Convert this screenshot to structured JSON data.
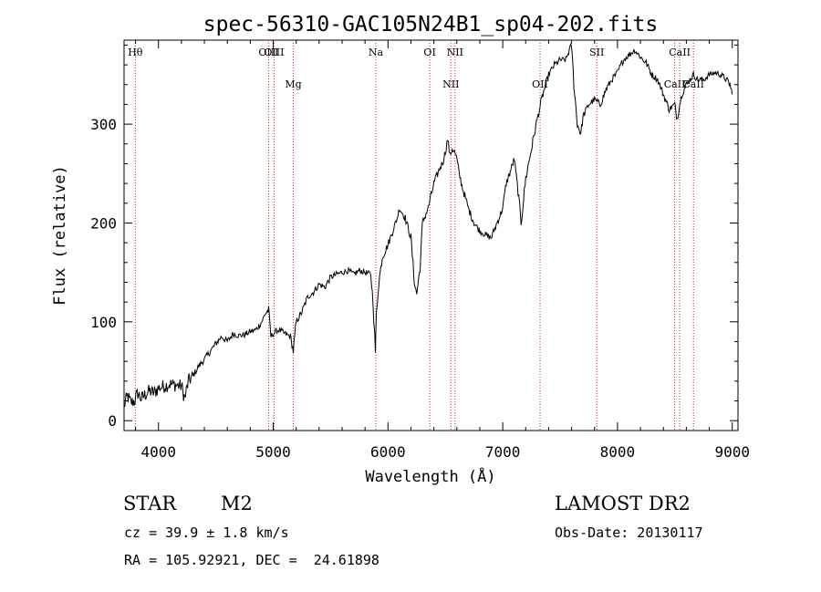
{
  "chart_data": {
    "type": "line",
    "title": "spec-56310-GAC105N24B1_sp04-202.fits",
    "xlabel": "Wavelength (Å)",
    "ylabel": "Flux (relative)",
    "xlim": [
      3700,
      9050
    ],
    "ylim": [
      -10,
      385
    ],
    "xticks": [
      4000,
      5000,
      6000,
      7000,
      8000,
      9000
    ],
    "xtick_labels": [
      "4000",
      "5000",
      "6000",
      "7000",
      "8000",
      "9000"
    ],
    "yticks": [
      0,
      100,
      200,
      300
    ],
    "ytick_labels": [
      "0",
      "100",
      "200",
      "300"
    ],
    "grid": false,
    "lines": [
      {
        "label": "Hθ",
        "wavelength": 3798,
        "label_row": "upper"
      },
      {
        "label": "OIII",
        "wavelength": 4959,
        "label_row": "upper"
      },
      {
        "label": "OIII",
        "wavelength": 5007,
        "label_row": "upper"
      },
      {
        "label": "Mg",
        "wavelength": 5175,
        "label_row": "lower"
      },
      {
        "label": "Na",
        "wavelength": 5894,
        "label_row": "upper"
      },
      {
        "label": "OI",
        "wavelength": 6364,
        "label_row": "upper"
      },
      {
        "label": "NII",
        "wavelength": 6548,
        "label_row": "lower"
      },
      {
        "label": "NII",
        "wavelength": 6584,
        "label_row": "upper"
      },
      {
        "label": "OII",
        "wavelength": 7325,
        "label_row": "lower"
      },
      {
        "label": "SII",
        "wavelength": 7820,
        "label_row": "upper"
      },
      {
        "label": "CaII",
        "wavelength": 8498,
        "label_row": "lower"
      },
      {
        "label": "CaII",
        "wavelength": 8542,
        "label_row": "upper"
      },
      {
        "label": "CaII",
        "wavelength": 8662,
        "label_row": "lower"
      }
    ],
    "series": [
      {
        "name": "spectrum",
        "x": [
          3700,
          3730,
          3760,
          3790,
          3820,
          3850,
          3880,
          3920,
          3960,
          4000,
          4050,
          4100,
          4150,
          4200,
          4230,
          4260,
          4300,
          4350,
          4400,
          4450,
          4500,
          4550,
          4600,
          4650,
          4700,
          4750,
          4800,
          4850,
          4900,
          4930,
          4960,
          4980,
          5000,
          5020,
          5050,
          5100,
          5150,
          5175,
          5200,
          5250,
          5300,
          5350,
          5400,
          5450,
          5500,
          5550,
          5600,
          5650,
          5700,
          5750,
          5800,
          5850,
          5870,
          5890,
          5900,
          5920,
          5950,
          6000,
          6050,
          6080,
          6100,
          6150,
          6200,
          6230,
          6250,
          6280,
          6300,
          6350,
          6400,
          6450,
          6480,
          6500,
          6520,
          6540,
          6560,
          6580,
          6600,
          6620,
          6650,
          6700,
          6750,
          6800,
          6850,
          6900,
          6950,
          7000,
          7030,
          7060,
          7100,
          7120,
          7140,
          7160,
          7200,
          7250,
          7300,
          7350,
          7400,
          7450,
          7500,
          7550,
          7580,
          7600,
          7620,
          7650,
          7680,
          7700,
          7750,
          7800,
          7850,
          7900,
          7950,
          8000,
          8050,
          8100,
          8150,
          8200,
          8250,
          8300,
          8350,
          8400,
          8450,
          8498,
          8520,
          8542,
          8560,
          8600,
          8662,
          8700,
          8750,
          8800,
          8850,
          8900,
          8950,
          8980,
          9000
        ],
        "values": [
          15,
          25,
          18,
          20,
          28,
          22,
          26,
          30,
          28,
          33,
          35,
          37,
          36,
          35,
          22,
          40,
          45,
          55,
          62,
          70,
          78,
          85,
          80,
          88,
          86,
          87,
          90,
          92,
          100,
          108,
          112,
          85,
          88,
          90,
          92,
          88,
          85,
          70,
          100,
          110,
          125,
          130,
          138,
          135,
          145,
          148,
          150,
          152,
          148,
          152,
          150,
          148,
          120,
          70,
          110,
          140,
          165,
          178,
          195,
          205,
          215,
          205,
          185,
          140,
          128,
          155,
          200,
          215,
          240,
          255,
          262,
          272,
          285,
          268,
          275,
          272,
          265,
          250,
          235,
          215,
          200,
          192,
          188,
          185,
          200,
          215,
          240,
          250,
          265,
          245,
          225,
          200,
          245,
          275,
          305,
          330,
          350,
          360,
          365,
          365,
          375,
          380,
          340,
          300,
          290,
          308,
          320,
          325,
          320,
          335,
          345,
          352,
          365,
          370,
          375,
          368,
          362,
          350,
          345,
          330,
          315,
          320,
          305,
          320,
          330,
          340,
          350,
          345,
          345,
          350,
          352,
          350,
          345,
          340,
          330
        ]
      }
    ]
  },
  "info": {
    "object_class": "STAR",
    "subclass": "M2",
    "survey": "LAMOST DR2",
    "redshift": "cz = 39.9 ± 1.8 km/s",
    "obs_date": "Obs-Date: 20130117",
    "coords": "RA = 105.92921, DEC =  24.61898"
  }
}
